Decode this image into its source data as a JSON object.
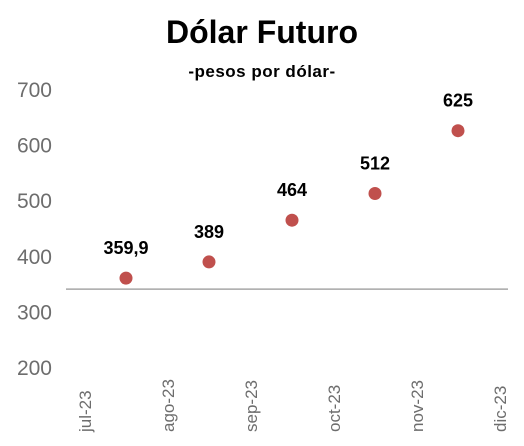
{
  "chart_data": {
    "type": "scatter",
    "title": "Dólar Futuro",
    "subtitle": "-pesos por dólar-",
    "xlabel": "",
    "ylabel": "",
    "x_ticks": [
      "jul-23",
      "ago-23",
      "sep-23",
      "oct-23",
      "nov-23",
      "dic-23"
    ],
    "points": [
      {
        "x": "jul-23",
        "y": 359.9,
        "label": "359,9"
      },
      {
        "x": "ago-23",
        "y": 389,
        "label": "389"
      },
      {
        "x": "sep-23",
        "y": 464,
        "label": "464"
      },
      {
        "x": "oct-23",
        "y": 512,
        "label": "512"
      },
      {
        "x": "nov-23",
        "y": 625,
        "label": "625"
      }
    ],
    "ylim": [
      200,
      700
    ],
    "y_ticks": [
      "200",
      "300",
      "400",
      "500",
      "600",
      "700"
    ],
    "baseline_y": 340,
    "grid": false,
    "legend": "none",
    "colors": {
      "marker": "#c0504d",
      "axis_line": "#a6a6a6",
      "tick_text": "#6d6d6d"
    }
  }
}
